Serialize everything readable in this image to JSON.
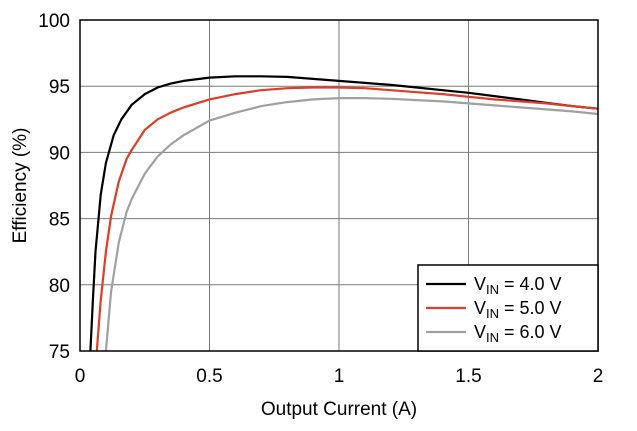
{
  "chart_data": {
    "type": "line",
    "title": "",
    "xlabel": "Output Current (A)",
    "ylabel": "Efficiency (%)",
    "xlim": [
      0,
      2
    ],
    "ylim": [
      75,
      100
    ],
    "grid": true,
    "legend_position": "bottom-right",
    "xticks": [
      {
        "value": 0,
        "label": "0"
      },
      {
        "value": 0.5,
        "label": "0.5"
      },
      {
        "value": 1,
        "label": "1"
      },
      {
        "value": 1.5,
        "label": "1.5"
      },
      {
        "value": 2,
        "label": "2"
      }
    ],
    "yticks": [
      {
        "value": 75,
        "label": "75"
      },
      {
        "value": 80,
        "label": "80"
      },
      {
        "value": 85,
        "label": "85"
      },
      {
        "value": 90,
        "label": "90"
      },
      {
        "value": 95,
        "label": "95"
      },
      {
        "value": 100,
        "label": "100"
      }
    ],
    "series": [
      {
        "name_main": "V",
        "name_sub": "IN",
        "name_rest": " = 4.0 V",
        "color": "#000000",
        "x": [
          0.04,
          0.05,
          0.06,
          0.08,
          0.1,
          0.13,
          0.16,
          0.2,
          0.25,
          0.3,
          0.35,
          0.4,
          0.5,
          0.6,
          0.7,
          0.8,
          0.9,
          1.0,
          1.1,
          1.2,
          1.3,
          1.4,
          1.5,
          1.6,
          1.7,
          1.8,
          1.9,
          2.0
        ],
        "y": [
          75,
          79,
          82.5,
          86.8,
          89.2,
          91.3,
          92.5,
          93.6,
          94.4,
          94.9,
          95.2,
          95.4,
          95.65,
          95.75,
          95.75,
          95.7,
          95.55,
          95.4,
          95.25,
          95.1,
          94.9,
          94.7,
          94.5,
          94.25,
          94.0,
          93.75,
          93.5,
          93.3
        ]
      },
      {
        "name_main": "V",
        "name_sub": "IN",
        "name_rest": " = 5.0 V",
        "color": "#e03c28",
        "x": [
          0.065,
          0.08,
          0.1,
          0.12,
          0.15,
          0.18,
          0.2,
          0.25,
          0.3,
          0.35,
          0.4,
          0.5,
          0.6,
          0.7,
          0.8,
          0.9,
          1.0,
          1.1,
          1.2,
          1.3,
          1.4,
          1.5,
          1.6,
          1.7,
          1.8,
          1.9,
          2.0
        ],
        "y": [
          75,
          78.8,
          82.5,
          85.2,
          87.8,
          89.5,
          90.2,
          91.7,
          92.5,
          93.0,
          93.4,
          94.0,
          94.4,
          94.7,
          94.85,
          94.9,
          94.9,
          94.85,
          94.7,
          94.55,
          94.4,
          94.2,
          94.0,
          93.85,
          93.7,
          93.5,
          93.3
        ]
      },
      {
        "name_main": "V",
        "name_sub": "IN",
        "name_rest": " = 6.0 V",
        "color": "#a0a0a0",
        "x": [
          0.1,
          0.12,
          0.15,
          0.18,
          0.2,
          0.25,
          0.3,
          0.35,
          0.4,
          0.5,
          0.6,
          0.7,
          0.8,
          0.9,
          1.0,
          1.1,
          1.2,
          1.3,
          1.4,
          1.5,
          1.6,
          1.7,
          1.8,
          1.9,
          2.0
        ],
        "y": [
          75,
          79.5,
          83.2,
          85.5,
          86.5,
          88.4,
          89.7,
          90.6,
          91.3,
          92.4,
          93.0,
          93.5,
          93.8,
          94.0,
          94.1,
          94.1,
          94.05,
          93.95,
          93.85,
          93.7,
          93.55,
          93.4,
          93.25,
          93.1,
          92.9
        ]
      }
    ]
  }
}
